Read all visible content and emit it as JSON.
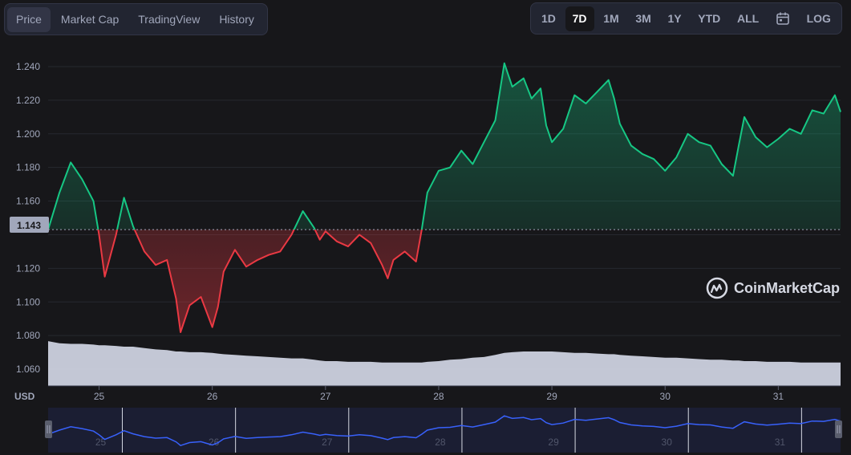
{
  "tabs": [
    {
      "label": "Price",
      "active": true
    },
    {
      "label": "Market Cap",
      "active": false
    },
    {
      "label": "TradingView",
      "active": false
    },
    {
      "label": "History",
      "active": false
    }
  ],
  "ranges": [
    {
      "label": "1D",
      "active": false
    },
    {
      "label": "7D",
      "active": true
    },
    {
      "label": "1M",
      "active": false
    },
    {
      "label": "3M",
      "active": false
    },
    {
      "label": "1Y",
      "active": false
    },
    {
      "label": "YTD",
      "active": false
    },
    {
      "label": "ALL",
      "active": false
    }
  ],
  "calendar_icon": "calendar-icon",
  "log_label": "LOG",
  "brand": {
    "name": "CoinMarketCap",
    "icon": "coinmarketcap-logo-icon"
  },
  "colors": {
    "up": "#16c784",
    "down": "#ea3943",
    "volume": "#d3d7e5",
    "navigator": "#3861fb"
  },
  "chart_data": {
    "type": "line",
    "title": "",
    "xlabel": "",
    "ylabel": "",
    "unit_label": "USD",
    "baseline_value": 1.143,
    "baseline_label": "1.143",
    "ylim": [
      1.05,
      1.25
    ],
    "y_ticks": [
      1.06,
      1.08,
      1.1,
      1.12,
      1.14,
      1.16,
      1.18,
      1.2,
      1.22,
      1.24
    ],
    "y_tick_labels": [
      "1.060",
      "1.080",
      "1.100",
      "1.120",
      "",
      "1.160",
      "1.180",
      "1.200",
      "1.220",
      "1.240"
    ],
    "xlim": [
      24.55,
      31.55
    ],
    "x_ticks": [
      25,
      26,
      27,
      28,
      29,
      30,
      31
    ],
    "x_tick_labels": [
      "25",
      "26",
      "27",
      "28",
      "29",
      "30",
      "31"
    ],
    "grid": true,
    "x": [
      24.55,
      24.65,
      24.75,
      24.85,
      24.95,
      25.0,
      25.05,
      25.15,
      25.22,
      25.3,
      25.4,
      25.5,
      25.6,
      25.68,
      25.72,
      25.8,
      25.9,
      26.0,
      26.05,
      26.1,
      26.2,
      26.3,
      26.4,
      26.5,
      26.6,
      26.7,
      26.8,
      26.9,
      26.95,
      27.0,
      27.1,
      27.2,
      27.3,
      27.4,
      27.5,
      27.55,
      27.6,
      27.7,
      27.8,
      27.85,
      27.9,
      28.0,
      28.1,
      28.2,
      28.3,
      28.4,
      28.5,
      28.58,
      28.65,
      28.75,
      28.82,
      28.9,
      28.95,
      29.0,
      29.1,
      29.2,
      29.3,
      29.4,
      29.5,
      29.55,
      29.6,
      29.7,
      29.8,
      29.9,
      30.0,
      30.1,
      30.2,
      30.3,
      30.4,
      30.5,
      30.6,
      30.65,
      30.7,
      30.8,
      30.9,
      31.0,
      31.1,
      31.2,
      31.3,
      31.4,
      31.5,
      31.55
    ],
    "y": [
      1.143,
      1.165,
      1.183,
      1.173,
      1.16,
      1.14,
      1.115,
      1.14,
      1.162,
      1.145,
      1.13,
      1.122,
      1.125,
      1.102,
      1.082,
      1.098,
      1.103,
      1.085,
      1.097,
      1.118,
      1.131,
      1.121,
      1.125,
      1.128,
      1.13,
      1.14,
      1.154,
      1.144,
      1.137,
      1.142,
      1.136,
      1.133,
      1.14,
      1.135,
      1.122,
      1.114,
      1.125,
      1.13,
      1.124,
      1.143,
      1.165,
      1.178,
      1.18,
      1.19,
      1.182,
      1.195,
      1.208,
      1.242,
      1.228,
      1.233,
      1.221,
      1.227,
      1.205,
      1.195,
      1.203,
      1.223,
      1.218,
      1.225,
      1.232,
      1.221,
      1.206,
      1.193,
      1.188,
      1.185,
      1.178,
      1.186,
      1.2,
      1.195,
      1.193,
      1.182,
      1.175,
      1.193,
      1.21,
      1.198,
      1.192,
      1.197,
      1.203,
      1.2,
      1.214,
      1.212,
      1.223,
      1.213
    ],
    "volume": [
      0.65,
      0.62,
      0.61,
      0.61,
      0.6,
      0.59,
      0.59,
      0.58,
      0.57,
      0.57,
      0.55,
      0.53,
      0.52,
      0.5,
      0.5,
      0.49,
      0.49,
      0.48,
      0.47,
      0.46,
      0.45,
      0.44,
      0.43,
      0.42,
      0.41,
      0.4,
      0.4,
      0.38,
      0.37,
      0.36,
      0.36,
      0.35,
      0.35,
      0.35,
      0.34,
      0.34,
      0.34,
      0.34,
      0.34,
      0.34,
      0.35,
      0.36,
      0.38,
      0.39,
      0.41,
      0.42,
      0.45,
      0.48,
      0.49,
      0.5,
      0.5,
      0.5,
      0.5,
      0.5,
      0.49,
      0.48,
      0.48,
      0.47,
      0.46,
      0.46,
      0.45,
      0.44,
      0.43,
      0.42,
      0.41,
      0.41,
      0.4,
      0.39,
      0.38,
      0.38,
      0.37,
      0.37,
      0.36,
      0.36,
      0.35,
      0.35,
      0.35,
      0.34,
      0.34,
      0.34,
      0.34,
      0.34
    ],
    "navigator_labels": [
      "25",
      "26",
      "27",
      "28",
      "29",
      "30",
      "31"
    ]
  }
}
